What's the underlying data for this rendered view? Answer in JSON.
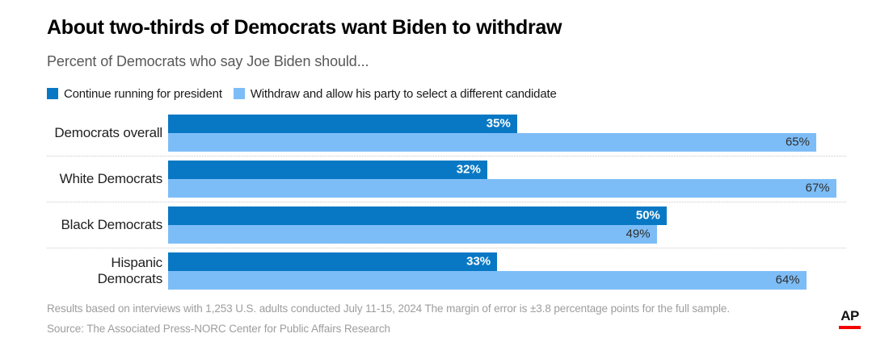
{
  "header": {
    "title": "About two-thirds of Democrats want Biden to withdraw",
    "subtitle": "Percent of Democrats who say Joe Biden should..."
  },
  "legend": [
    {
      "label": "Continue running for president",
      "color": "#0878c4"
    },
    {
      "label": "Withdraw and allow his party to select a different candidate",
      "color": "#7dbdf7"
    }
  ],
  "chart_data": {
    "type": "bar",
    "orientation": "horizontal",
    "title": "About two-thirds of Democrats want Biden to withdraw",
    "subtitle": "Percent of Democrats who say Joe Biden should...",
    "categories": [
      "Democrats overall",
      "White Democrats",
      "Black Democrats",
      "Hispanic Democrats"
    ],
    "series": [
      {
        "name": "Continue running for president",
        "color": "#0878c4",
        "values": [
          35,
          32,
          50,
          33
        ]
      },
      {
        "name": "Withdraw and allow his party to select a different candidate",
        "color": "#7dbdf7",
        "values": [
          65,
          67,
          49,
          64
        ]
      }
    ],
    "value_suffix": "%",
    "xlim": [
      0,
      68
    ],
    "grid": false,
    "legend_position": "top"
  },
  "footer": {
    "note": "Results based on interviews with 1,253 U.S. adults conducted July 11-15, 2024 The margin of error is ±3.8 percentage points for the full sample.",
    "source": "Source: The Associated Press-NORC Center for Public Affairs Research",
    "logo_text": "AP",
    "logo_bar_color": "#f40000"
  }
}
